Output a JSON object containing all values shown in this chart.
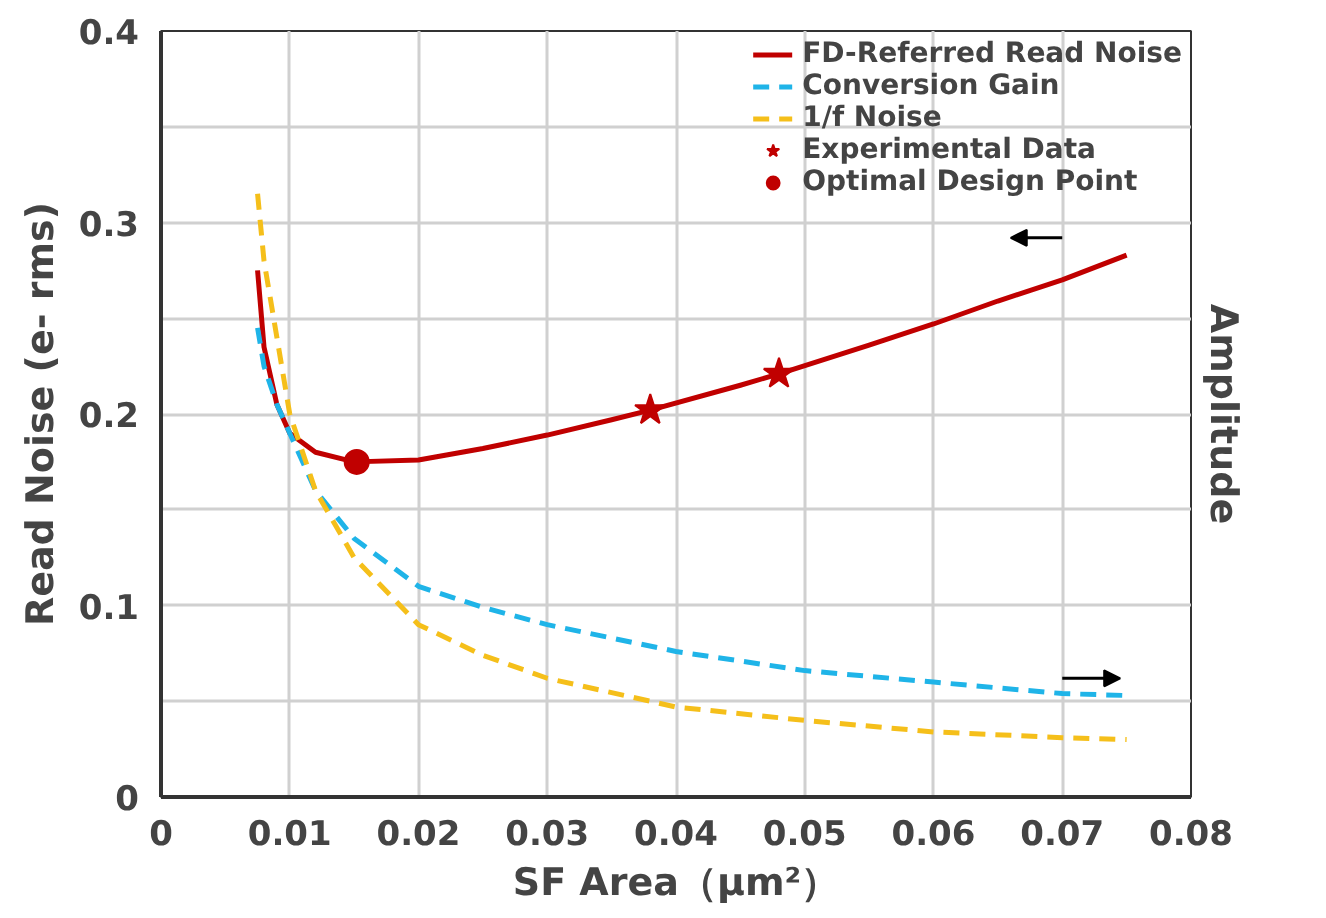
{
  "chart_data": {
    "type": "line",
    "xlabel": "SF Area（μm²）",
    "ylabel": "Read Noise (e- rms)",
    "y2label": "Amplitude",
    "xlim": [
      0,
      0.08
    ],
    "xticks": [
      0,
      0.01,
      0.02,
      0.03,
      0.04,
      0.05,
      0.06,
      0.07,
      0.08
    ],
    "ylim": [
      0,
      0.4
    ],
    "yticks": [
      0,
      {
        "value": 0.05,
        "label": null
      },
      0.1,
      {
        "value": 0.15,
        "label": null
      },
      0.2,
      {
        "value": 0.25,
        "label": null
      },
      0.3,
      {
        "value": 0.35,
        "label": null
      },
      0.4
    ],
    "grid": true,
    "legend": "top right",
    "series": [
      {
        "name": "FD-Referred Read Noise",
        "line_style": "solid",
        "color": "#c00000",
        "x": [
          0.0075,
          0.008,
          0.009,
          0.01,
          0.012,
          0.015,
          0.02,
          0.025,
          0.03,
          0.035,
          0.038,
          0.045,
          0.048,
          0.055,
          0.06,
          0.065,
          0.07,
          0.075
        ],
        "values": [
          0.275,
          0.235,
          0.205,
          0.19,
          0.18,
          0.175,
          0.176,
          0.182,
          0.189,
          0.197,
          0.202,
          0.215,
          0.221,
          0.236,
          0.247,
          0.259,
          0.27,
          0.283
        ]
      },
      {
        "name": "Conversion Gain",
        "line_style": "dashed",
        "color": "#1fb4e8",
        "x": [
          0.0075,
          0.008,
          0.009,
          0.01,
          0.012,
          0.015,
          0.02,
          0.025,
          0.03,
          0.04,
          0.05,
          0.06,
          0.07,
          0.075
        ],
        "values": [
          0.245,
          0.225,
          0.205,
          0.19,
          0.16,
          0.135,
          0.11,
          0.099,
          0.09,
          0.076,
          0.066,
          0.06,
          0.054,
          0.053
        ]
      },
      {
        "name": "1/f Noise",
        "line_style": "dashed",
        "color": "#f5bf1a",
        "x": [
          0.0075,
          0.008,
          0.009,
          0.01,
          0.012,
          0.015,
          0.02,
          0.025,
          0.03,
          0.04,
          0.05,
          0.06,
          0.07,
          0.075
        ],
        "values": [
          0.315,
          0.28,
          0.24,
          0.2,
          0.16,
          0.125,
          0.09,
          0.074,
          0.062,
          0.047,
          0.04,
          0.034,
          0.031,
          0.03
        ]
      },
      {
        "name": "Experimental Data",
        "type": "scatter",
        "marker": "star",
        "color": "#c00000",
        "x": [
          0.038,
          0.048
        ],
        "values": [
          0.202,
          0.221
        ]
      },
      {
        "name": "Optimal Design Point",
        "type": "scatter",
        "marker": "circle",
        "color": "#c00000",
        "x": [
          0.0152
        ],
        "values": [
          0.175
        ]
      }
    ]
  }
}
